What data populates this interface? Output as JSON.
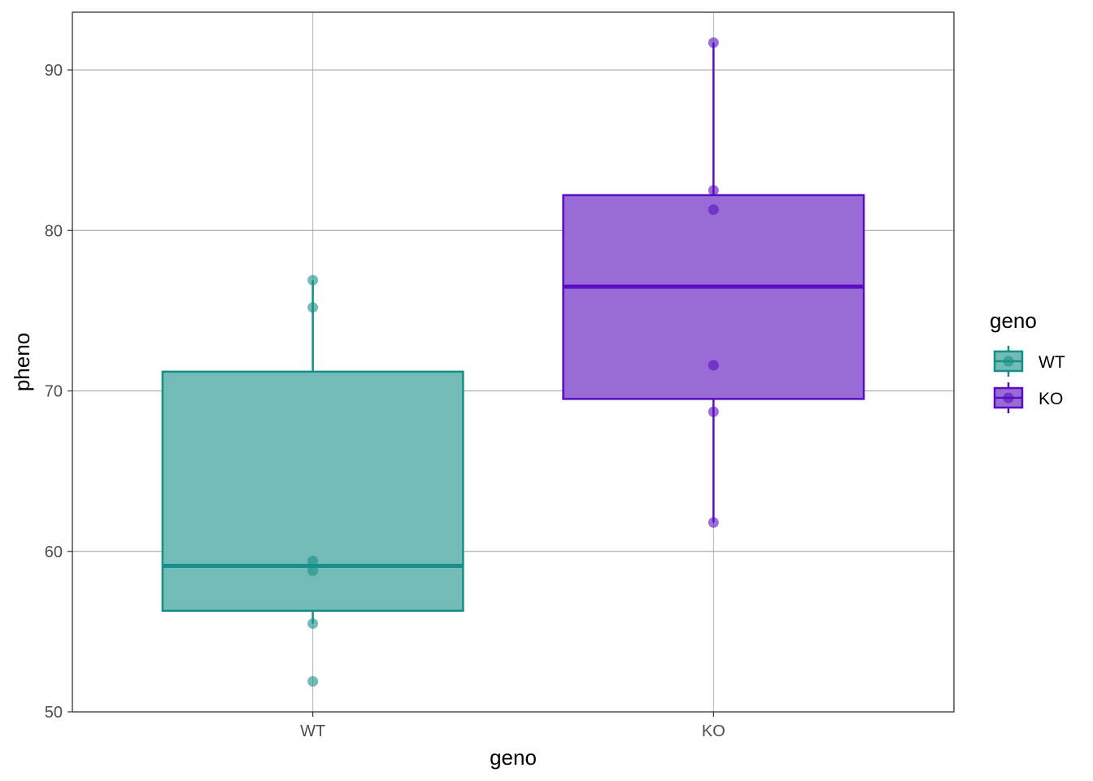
{
  "chart_data": {
    "type": "box",
    "xlabel": "geno",
    "ylabel": "pheno",
    "ylim": [
      50,
      93.6
    ],
    "yticks": [
      50,
      60,
      70,
      80,
      90
    ],
    "categories": [
      "WT",
      "KO"
    ],
    "grid": true,
    "legend": {
      "title": "geno",
      "placement": "right",
      "entries": [
        {
          "label": "WT",
          "color": "#178F88"
        },
        {
          "label": "KO",
          "color": "#5A0EBF"
        }
      ]
    },
    "series": [
      {
        "name": "WT",
        "color": "#178F88",
        "fill": "#72BBB7",
        "whisker_low": 55.5,
        "q1": 56.3,
        "median": 59.1,
        "q3": 71.2,
        "whisker_high": 76.9,
        "points": [
          76.9,
          75.2,
          59.4,
          58.8,
          55.5,
          51.9
        ]
      },
      {
        "name": "KO",
        "color": "#5A0EBF",
        "fill": "#986BD6",
        "whisker_low": 61.8,
        "q1": 69.5,
        "median": 76.5,
        "q3": 82.2,
        "whisker_high": 91.7,
        "points": [
          91.7,
          82.5,
          81.3,
          71.6,
          68.7,
          61.8
        ]
      }
    ]
  }
}
